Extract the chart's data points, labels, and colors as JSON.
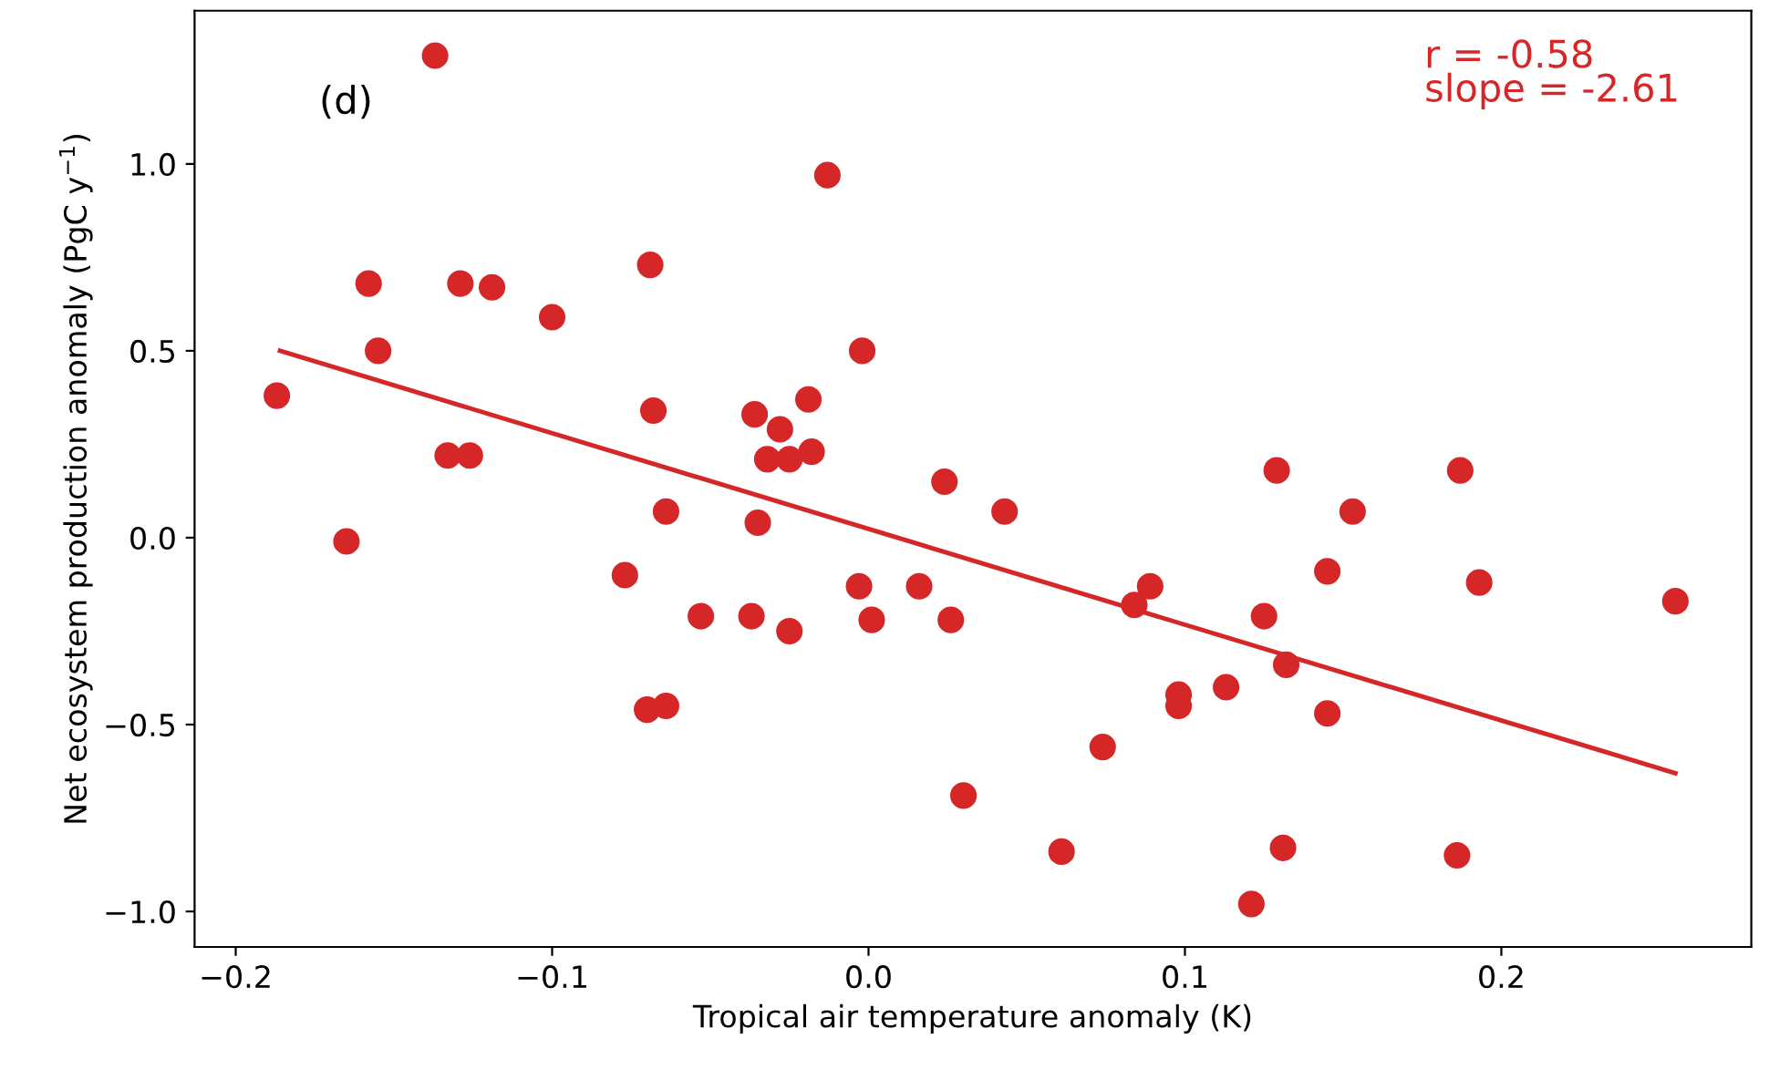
{
  "chart_data": {
    "type": "scatter",
    "xlabel": "Tropical air temperature anomaly (K)",
    "ylabel": "Net ecosystem production anomaly (PgC y$^{−1}$)",
    "annotations": [
      "(d)",
      "r = -0.58\nslope = -2.61"
    ],
    "xlim": [
      -0.213,
      0.279
    ],
    "ylim": [
      -1.095,
      1.41
    ],
    "xticks": [
      {
        "value": -0.2,
        "label": "−0.2"
      },
      {
        "value": -0.1,
        "label": "−0.1"
      },
      {
        "value": 0.0,
        "label": "0.0"
      },
      0.1,
      0.2
    ],
    "yticks": [
      {
        "value": -1.0,
        "label": "−1.0"
      },
      {
        "value": -0.5,
        "label": "−0.5"
      },
      {
        "value": 0.0,
        "label": "0.0"
      },
      0.5,
      {
        "value": 1.0,
        "label": "1.0"
      }
    ],
    "grid": false,
    "marker": "circle",
    "series": [
      {
        "color": "#d62728",
        "x": [
          -0.187,
          -0.165,
          -0.137,
          -0.158,
          -0.155,
          -0.129,
          -0.119,
          -0.133,
          -0.126,
          -0.1,
          -0.077,
          -0.069,
          -0.068,
          -0.064,
          -0.053,
          -0.07,
          -0.064,
          -0.036,
          -0.035,
          -0.037,
          -0.028,
          -0.032,
          -0.025,
          -0.025,
          -0.019,
          -0.018,
          -0.013,
          -0.002,
          -0.003,
          0.001,
          0.016,
          0.024,
          0.026,
          0.03,
          0.043,
          0.061,
          0.074,
          0.084,
          0.089,
          0.098,
          0.098,
          0.113,
          0.121,
          0.125,
          0.129,
          0.131,
          0.132,
          0.145,
          0.145,
          0.153,
          0.186,
          0.187,
          0.193,
          0.255
        ],
        "values": [
          0.38,
          -0.01,
          1.29,
          0.68,
          0.5,
          0.68,
          0.67,
          0.22,
          0.22,
          0.59,
          -0.1,
          0.73,
          0.34,
          0.07,
          -0.21,
          -0.46,
          -0.45,
          0.33,
          0.04,
          -0.21,
          0.29,
          0.21,
          0.21,
          -0.25,
          0.37,
          0.23,
          0.97,
          0.5,
          -0.13,
          -0.22,
          -0.13,
          0.15,
          -0.22,
          -0.69,
          0.07,
          -0.84,
          -0.56,
          -0.18,
          -0.13,
          -0.42,
          -0.45,
          -0.4,
          -0.98,
          -0.21,
          0.18,
          -0.83,
          -0.34,
          -0.09,
          -0.47,
          0.07,
          -0.85,
          0.18,
          -0.12,
          -0.17
        ]
      },
      {
        "type": "line",
        "color": "#d62728",
        "marker": "none",
        "line_style": "solid",
        "x": [
          -0.186,
          0.255
        ],
        "values": [
          0.5,
          -0.63
        ]
      }
    ]
  }
}
